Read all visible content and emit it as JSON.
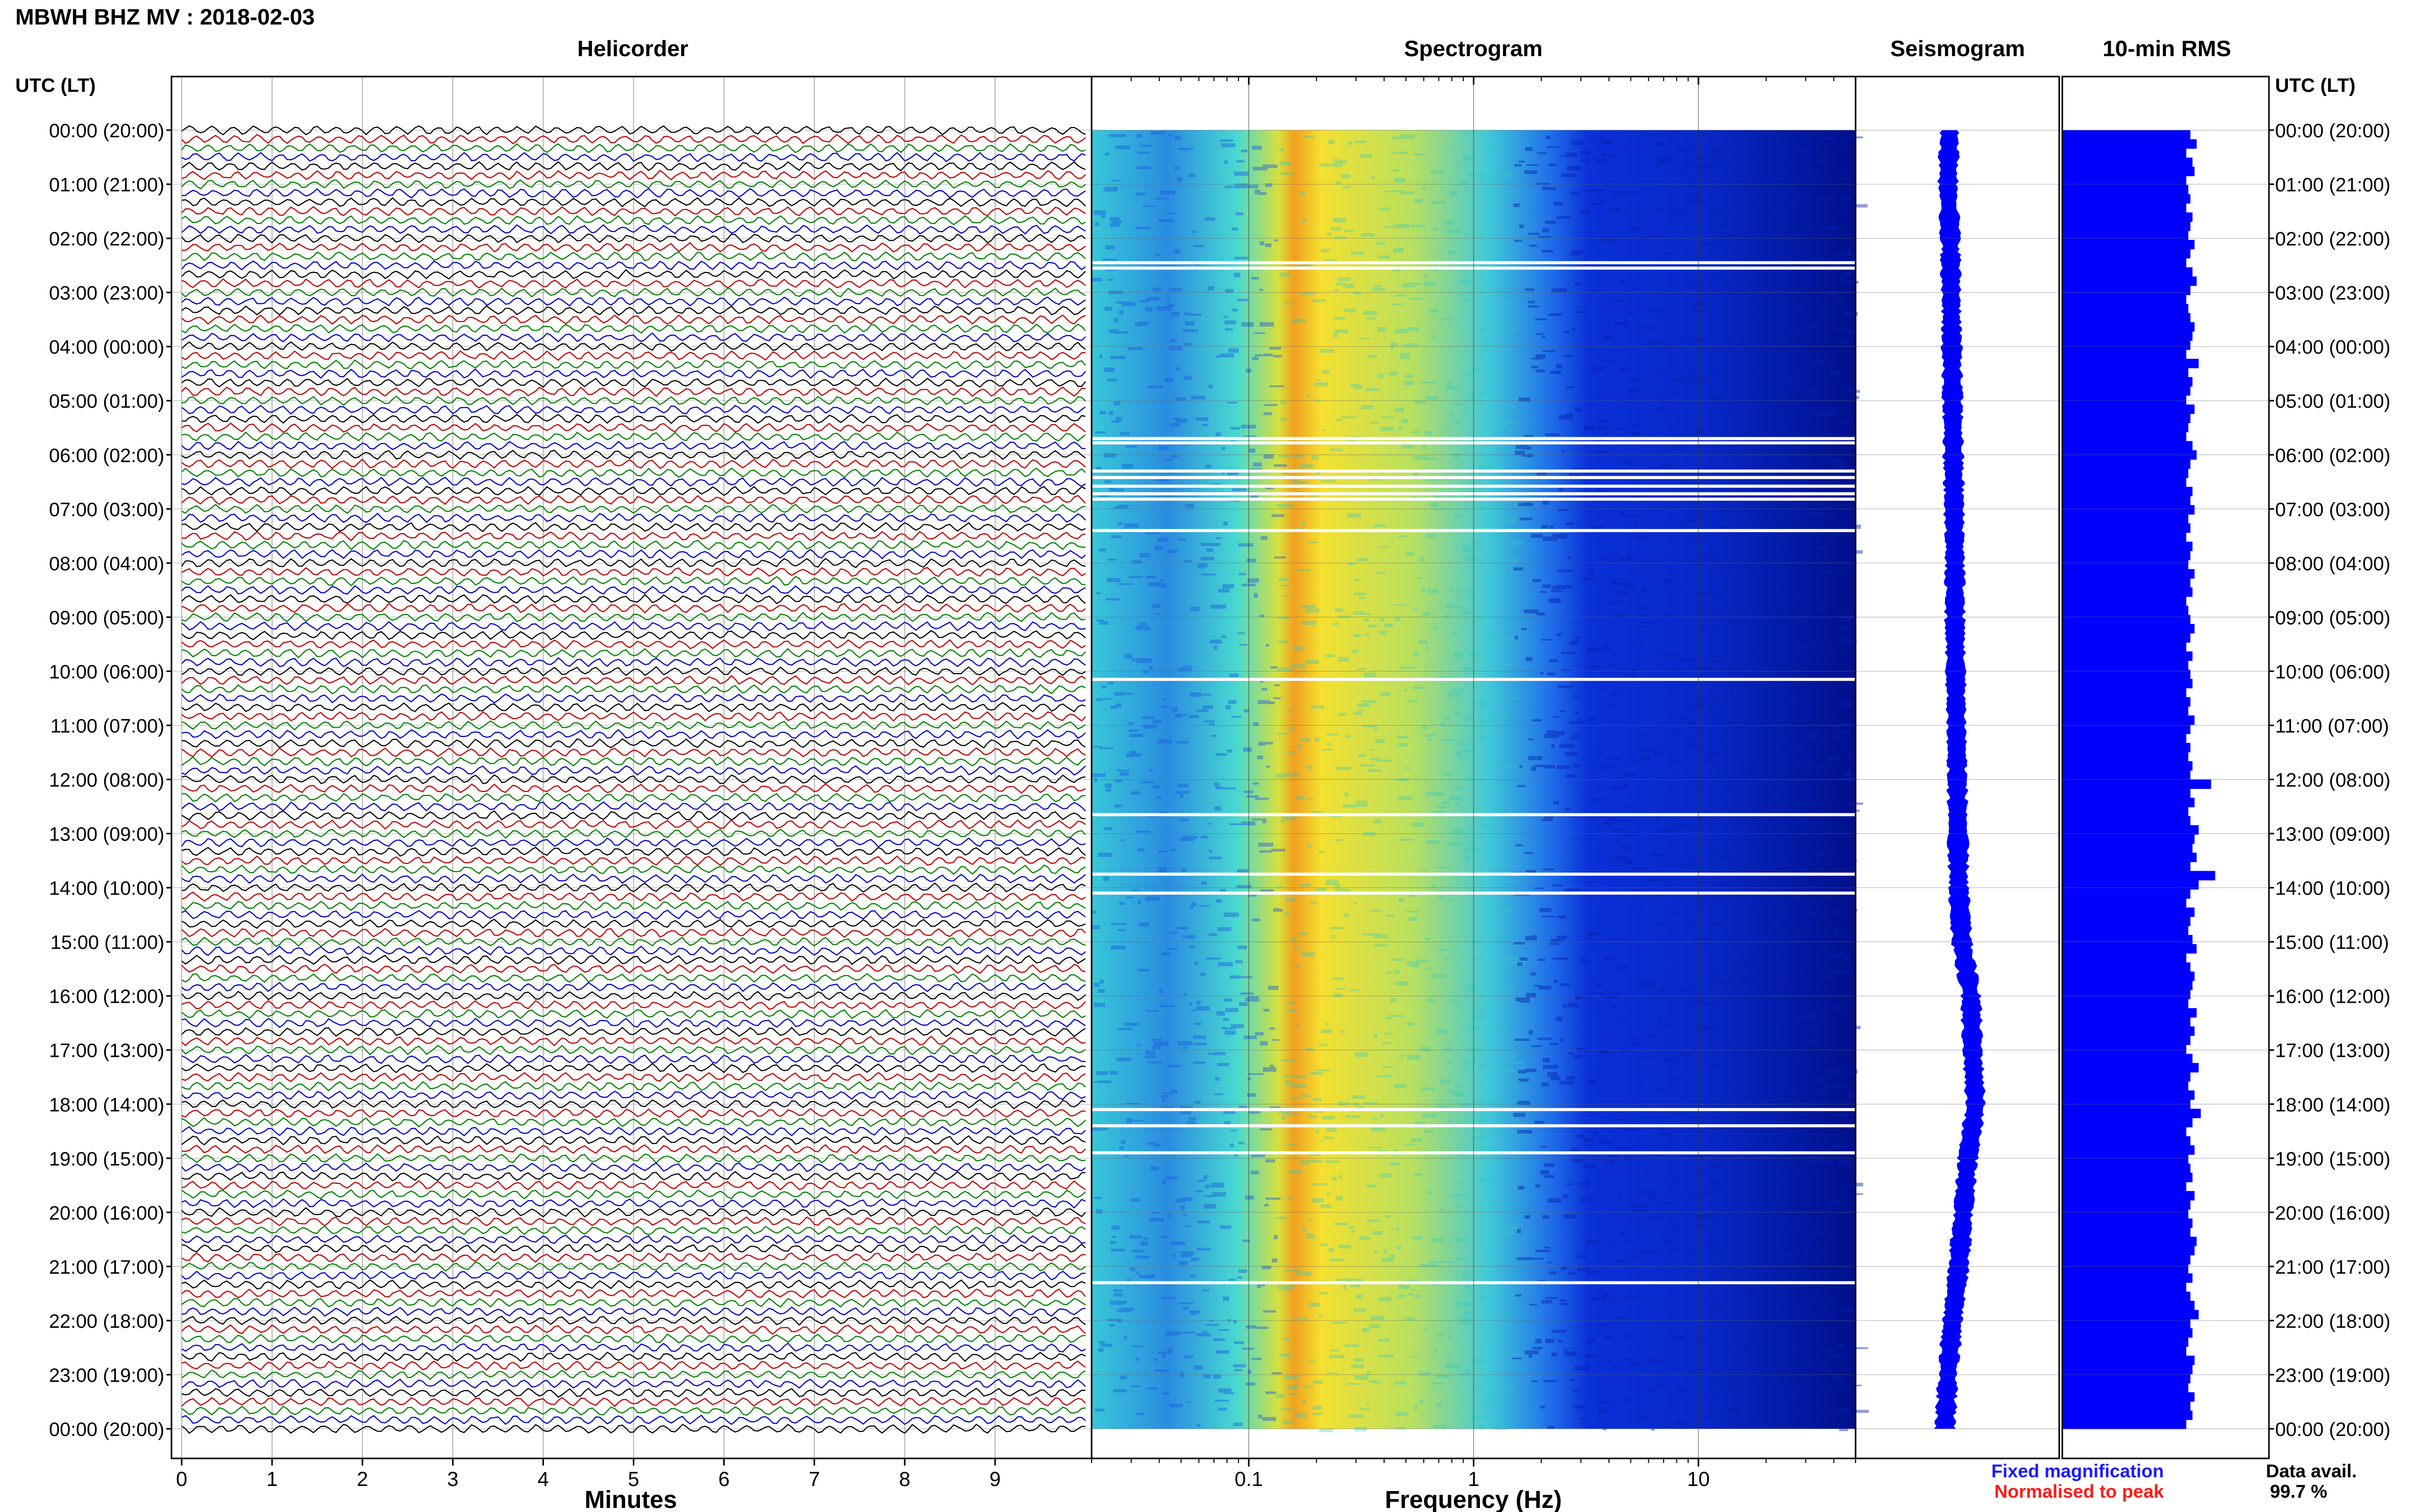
{
  "header": {
    "title": "MBWH BHZ MV : 2018-02-03"
  },
  "panels": {
    "helicorder": "Helicorder",
    "spectrogram": "Spectrogram",
    "seismogram": "Seismogram",
    "rms": "10-min RMS"
  },
  "axis": {
    "left_header": "UTC (LT)",
    "right_header": "UTC (LT)",
    "x_helicorder_label": "Minutes",
    "x_spectrogram_label": "Frequency (Hz)"
  },
  "legend": {
    "fixed": "Fixed magnification",
    "normalised": "Normalised to peak",
    "fixed_color": "#1a1aff",
    "normalised_color": "#ff1a1a"
  },
  "availability": {
    "label": "Data avail.",
    "value": "99.7 %"
  },
  "colors": {
    "trace_palette": [
      "#000000",
      "#c00000",
      "#008000",
      "#0000c8"
    ],
    "spectrogram_low": "#00008b",
    "spectrogram_high": "#ff8c00",
    "seismogram": "#0000ff",
    "rms": "#0000ff"
  },
  "chart_data": {
    "type": "heatmap",
    "time_ticks": [
      "00:00 (20:00)",
      "01:00 (21:00)",
      "02:00 (22:00)",
      "03:00 (23:00)",
      "04:00 (00:00)",
      "05:00 (01:00)",
      "06:00 (02:00)",
      "07:00 (03:00)",
      "08:00 (04:00)",
      "09:00 (05:00)",
      "10:00 (06:00)",
      "11:00 (07:00)",
      "12:00 (08:00)",
      "13:00 (09:00)",
      "14:00 (10:00)",
      "15:00 (11:00)",
      "16:00 (12:00)",
      "17:00 (13:00)",
      "18:00 (14:00)",
      "19:00 (15:00)",
      "20:00 (16:00)",
      "21:00 (17:00)",
      "22:00 (18:00)",
      "23:00 (19:00)",
      "00:00 (20:00)"
    ],
    "minutes_ticks": [
      "0",
      "1",
      "2",
      "3",
      "4",
      "5",
      "6",
      "7",
      "8",
      "9"
    ],
    "minutes_range": [
      0,
      10
    ],
    "frequency_ticks": [
      "0.1",
      "1",
      "10"
    ],
    "frequency_range_hz": [
      0.02,
      50
    ],
    "frequency_scale": "log",
    "helicorder_lines_per_hour": 6,
    "spectrogram_gaps_hours": [
      2.45,
      2.55,
      5.7,
      5.78,
      6.3,
      6.42,
      6.58,
      6.72,
      6.82,
      7.4,
      10.15,
      12.65,
      13.75,
      14.1,
      18.1,
      18.4,
      18.9,
      21.3
    ],
    "seismogram_offset": [
      0.0,
      -0.1,
      0.05,
      0.1,
      0.15,
      0.2,
      0.25,
      0.3,
      0.35,
      0.35,
      0.4,
      0.45,
      0.5,
      0.55,
      0.6,
      0.8,
      1.4,
      1.5,
      1.7,
      1.2,
      0.9,
      0.6,
      0.2,
      -0.1,
      -0.3
    ],
    "rms_relative": [
      0.62,
      0.65,
      0.6,
      0.63,
      0.64,
      0.6,
      0.61,
      0.62,
      0.6,
      0.63,
      0.62,
      0.61,
      0.64,
      0.62,
      0.6,
      0.63,
      0.65,
      0.62,
      0.6,
      0.61,
      0.62,
      0.64,
      0.63,
      0.62,
      0.6,
      0.66,
      0.61,
      0.63,
      0.62,
      0.6,
      0.64,
      0.62,
      0.61,
      0.6,
      0.63,
      0.65,
      0.62,
      0.61,
      0.6,
      0.63,
      0.62,
      0.64,
      0.61,
      0.62,
      0.6,
      0.63,
      0.62,
      0.61,
      0.64,
      0.62,
      0.63,
      0.6,
      0.61,
      0.62,
      0.64,
      0.62,
      0.6,
      0.63,
      0.61,
      0.62,
      0.63,
      0.6,
      0.62,
      0.61,
      0.64,
      0.62,
      0.6,
      0.62,
      0.61,
      0.63,
      0.62,
      0.72,
      0.62,
      0.64,
      0.61,
      0.62,
      0.66,
      0.64,
      0.63,
      0.65,
      0.62,
      0.74,
      0.66,
      0.62,
      0.6,
      0.64,
      0.62,
      0.61,
      0.63,
      0.65,
      0.6,
      0.62,
      0.64,
      0.63,
      0.62,
      0.61,
      0.65,
      0.62,
      0.64,
      0.62,
      0.6,
      0.63,
      0.66,
      0.62,
      0.61,
      0.64,
      0.62,
      0.67,
      0.63,
      0.6,
      0.62,
      0.64,
      0.61,
      0.62,
      0.63,
      0.6,
      0.64,
      0.62,
      0.61,
      0.63,
      0.62,
      0.65,
      0.64,
      0.62,
      0.61,
      0.63,
      0.6,
      0.62,
      0.64,
      0.66,
      0.62,
      0.63,
      0.61,
      0.6,
      0.64,
      0.63,
      0.62,
      0.61,
      0.64,
      0.62,
      0.63,
      0.6
    ],
    "availability_percent": 99.7
  }
}
